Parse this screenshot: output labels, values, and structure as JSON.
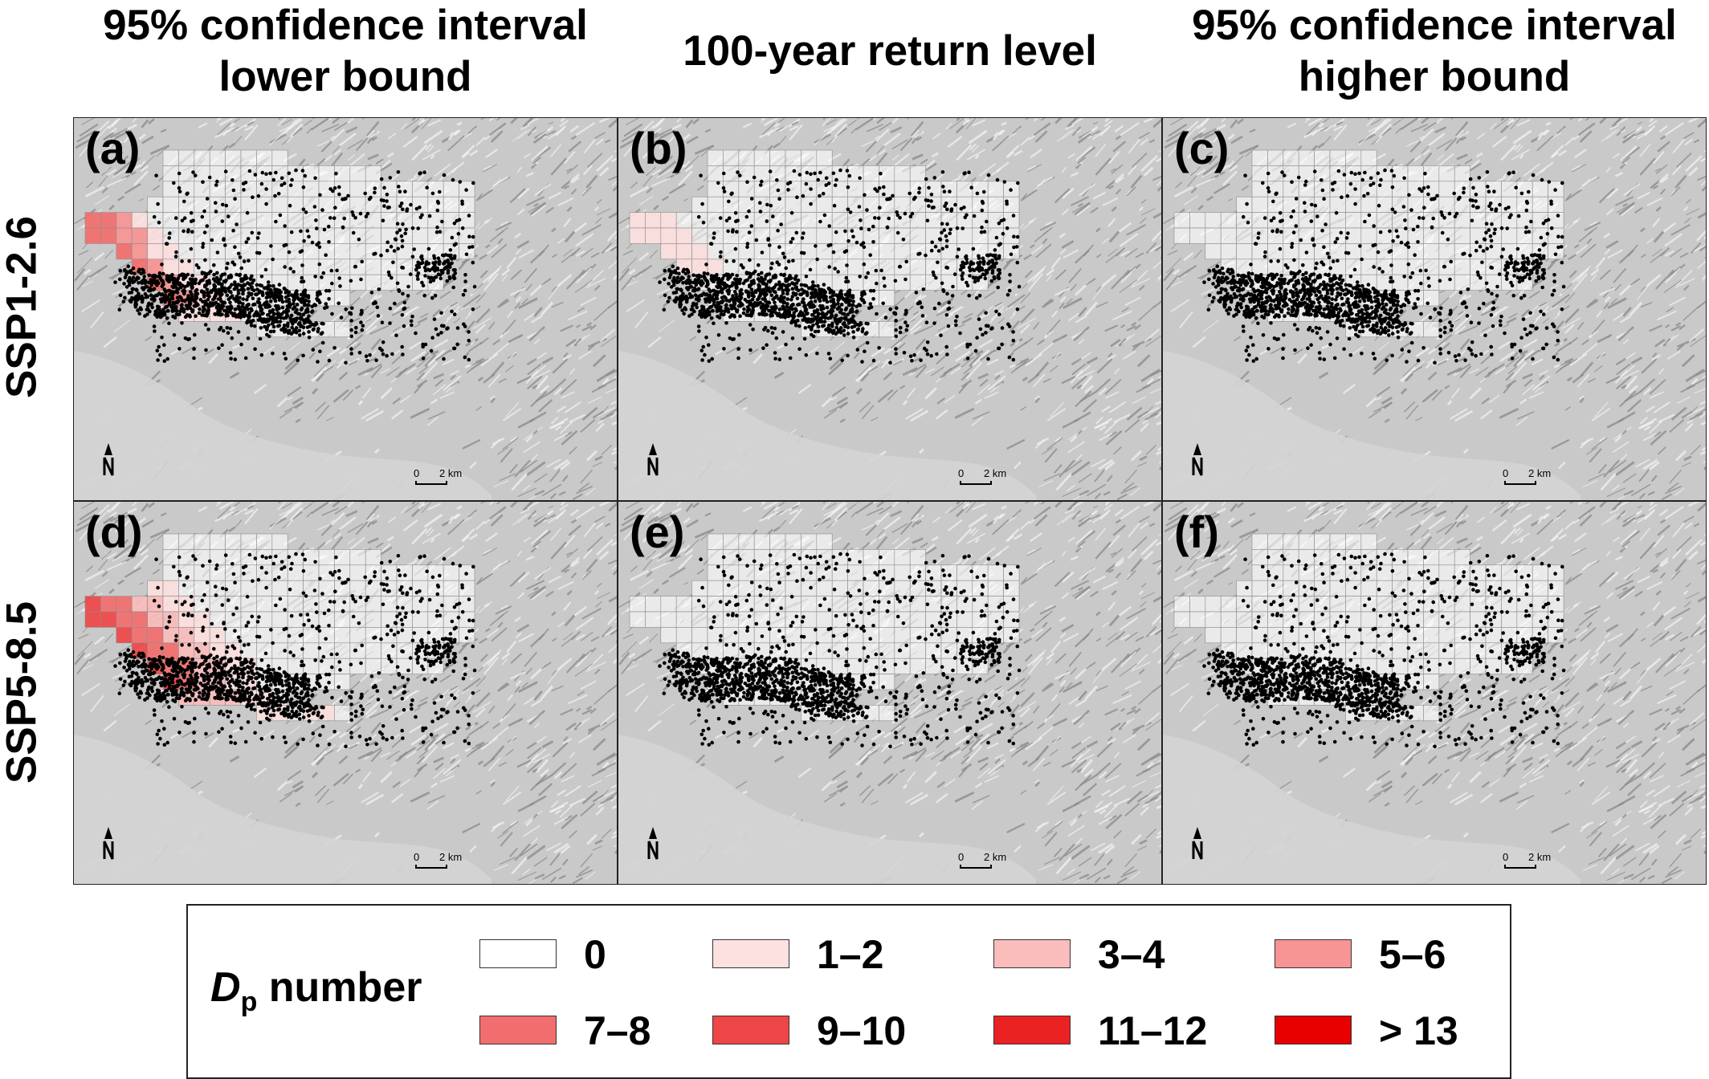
{
  "columns": [
    {
      "line1": "95% confidence interval",
      "line2": "lower bound"
    },
    {
      "line1": "100-year return level",
      "line2": ""
    },
    {
      "line1": "95% confidence interval",
      "line2": "higher bound"
    }
  ],
  "rows": [
    "SSP1-2.6",
    "SSP5-8.5"
  ],
  "panels": [
    {
      "label": "(a)",
      "scenario": "SSP1-2.6",
      "statistic": "lower"
    },
    {
      "label": "(b)",
      "scenario": "SSP1-2.6",
      "statistic": "return"
    },
    {
      "label": "(c)",
      "scenario": "SSP1-2.6",
      "statistic": "higher"
    },
    {
      "label": "(d)",
      "scenario": "SSP5-8.5",
      "statistic": "lower"
    },
    {
      "label": "(e)",
      "scenario": "SSP5-8.5",
      "statistic": "return"
    },
    {
      "label": "(f)",
      "scenario": "SSP5-8.5",
      "statistic": "higher"
    }
  ],
  "scale_bar": {
    "start": "0",
    "end": "2 km"
  },
  "legend": {
    "title_main": "D",
    "title_sub": "p",
    "title_rest": " number",
    "classes": [
      {
        "label": "0",
        "color": "#ffffff"
      },
      {
        "label": "1–2",
        "color": "#fde0e0"
      },
      {
        "label": "3–4",
        "color": "#fbbcbc"
      },
      {
        "label": "5–6",
        "color": "#f79494"
      },
      {
        "label": "7–8",
        "color": "#f26e6e"
      },
      {
        "label": "9–10",
        "color": "#ee4646"
      },
      {
        "label": "11–12",
        "color": "#eb2222"
      },
      {
        "label": "> 13",
        "color": "#e80000"
      }
    ]
  }
}
